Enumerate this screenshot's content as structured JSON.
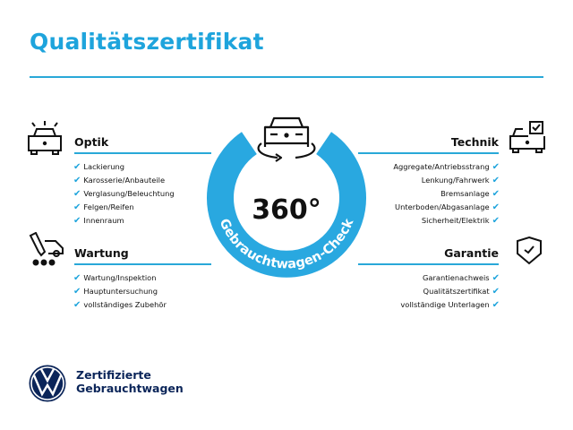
{
  "title": "Qualitätszertifikat",
  "center": {
    "value": "360°",
    "ring_text": "Gebrauchtwagen-Check"
  },
  "colors": {
    "accent": "#1ea4dc",
    "ring": "#29a8e0",
    "brand_navy": "#0b2559"
  },
  "check_icon": "check-icon",
  "sections": {
    "optik": {
      "heading": "Optik",
      "icon": "car-lights-icon",
      "items": [
        "Lackierung",
        "Karosserie/Anbauteile",
        "Verglasung/Beleuchtung",
        "Felgen/Reifen",
        "Innenraum"
      ]
    },
    "wartung": {
      "heading": "Wartung",
      "icon": "maintenance-car-icon",
      "items": [
        "Wartung/Inspektion",
        "Hauptuntersuchung",
        "vollständiges Zubehör"
      ]
    },
    "technik": {
      "heading": "Technik",
      "icon": "car-checkbox-icon",
      "items": [
        "Aggregate/Antriebsstrang",
        "Lenkung/Fahrwerk",
        "Bremsanlage",
        "Unterboden/Abgasanlage",
        "Sicherheit/Elektrik"
      ]
    },
    "garantie": {
      "heading": "Garantie",
      "icon": "shield-check-icon",
      "items": [
        "Garantienachweis",
        "Qualitätszertifikat",
        "vollständige Unterlagen"
      ]
    }
  },
  "footer": {
    "line1": "Zertifizierte",
    "line2": "Gebrauchtwagen"
  },
  "check": "✔"
}
